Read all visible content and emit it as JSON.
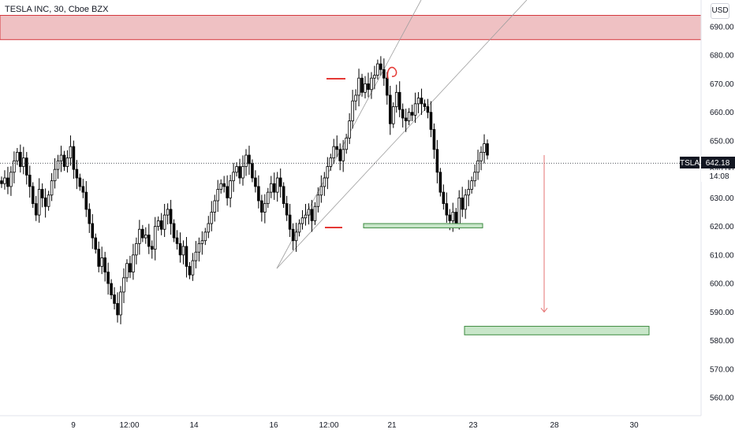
{
  "header": {
    "symbol_line": "TESLA INC, 30, Cboe BZX",
    "currency": "USD"
  },
  "price_tag": {
    "ticker": "TSLA",
    "price": "642.18",
    "countdown": "14:08"
  },
  "colors": {
    "up": "#26a69a",
    "down": "#000000",
    "candle": "#000000",
    "resistance_fill": "#efc1c3",
    "resistance_stroke": "#d3383d",
    "support_fill": "#c8e6c9",
    "support_stroke": "#3d8b40",
    "marker": "#e53935",
    "arrow": "#e57373",
    "trendline": "#9e9e9e"
  },
  "chart_data": {
    "type": "candlestick",
    "title": "TESLA INC, 30, Cboe BZX",
    "ylim": [
      552,
      700
    ],
    "y_ticks": [
      560,
      570,
      580,
      590,
      600,
      610,
      620,
      630,
      640,
      650,
      660,
      670,
      680,
      690
    ],
    "y_tick_labels": [
      "560.00",
      "570.00",
      "580.00",
      "590.00",
      "600.00",
      "610.00",
      "620.00",
      "630.00",
      "640.00",
      "650.00",
      "660.00",
      "670.00",
      "680.00",
      "690.00"
    ],
    "x_labels": [
      "9",
      "12:00",
      "14",
      "16",
      "12:00",
      "21",
      "23",
      "28",
      "30"
    ],
    "last_price": 642.18,
    "resistance_zone": [
      685.5,
      694
    ],
    "support_zones": [
      [
        619.5,
        621
      ],
      [
        582,
        585
      ]
    ],
    "target_arrow": {
      "from": 645,
      "to": 590
    },
    "closes": [
      635,
      637,
      634,
      639,
      643,
      646,
      641,
      644,
      638,
      634,
      628,
      624,
      633,
      630,
      627,
      631,
      636,
      640,
      643,
      645,
      641,
      644,
      648,
      640,
      637,
      634,
      632,
      626,
      621,
      616,
      612,
      606,
      609,
      604,
      600,
      596,
      593,
      589,
      597,
      602,
      607,
      604,
      610,
      614,
      619,
      616,
      617,
      613,
      612,
      620,
      622,
      619,
      624,
      626,
      621,
      616,
      614,
      610,
      613,
      606,
      603,
      608,
      611,
      614,
      615,
      618,
      621,
      625,
      629,
      633,
      635,
      634,
      630,
      636,
      639,
      641,
      637,
      641,
      645,
      642,
      637,
      634,
      629,
      625,
      628,
      632,
      635,
      632,
      637,
      634,
      628,
      624,
      619,
      615,
      618,
      621,
      623,
      624,
      626,
      622,
      627,
      631,
      634,
      637,
      641,
      644,
      648,
      647,
      643,
      647,
      651,
      657,
      664,
      666,
      672,
      667,
      670,
      668,
      672,
      673,
      677,
      675,
      672,
      666,
      656,
      662,
      667,
      661,
      658,
      657,
      660,
      659,
      663,
      665,
      663,
      662,
      660,
      654,
      647,
      639,
      632,
      628,
      624,
      622,
      625,
      621,
      630,
      626,
      631,
      633,
      636,
      639,
      643,
      646,
      649,
      645
    ],
    "volume": []
  }
}
